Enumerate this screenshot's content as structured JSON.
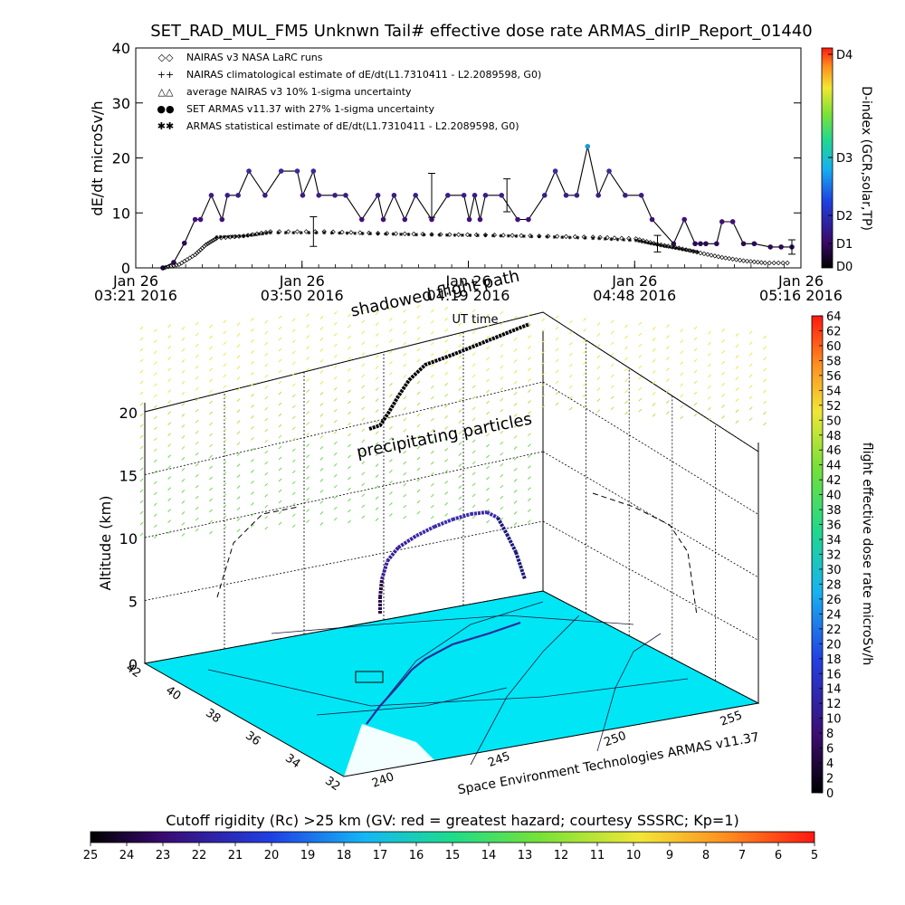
{
  "chart_data": [
    {
      "type": "line",
      "title": "SET_RAD_MUL_FM5 Unknwn Tail#  effective dose rate ARMAS_dirIP_Report_01440",
      "ylabel": "dE/dt microSv/h",
      "xlabel": "UT time",
      "ylim": [
        0,
        40
      ],
      "yticks": [
        0,
        10,
        20,
        30,
        40
      ],
      "xticks": [
        {
          "line1": "Jan 26",
          "line2": "03:21 2016"
        },
        {
          "line1": "Jan 26",
          "line2": "03:50 2016"
        },
        {
          "line1": "Jan 26",
          "line2": "04:19 2016"
        },
        {
          "line1": "Jan 26",
          "line2": "04:48 2016"
        },
        {
          "line1": "Jan 26",
          "line2": "05:16 2016"
        }
      ],
      "legend": [
        "NAIRAS v3 NASA LaRC runs",
        "NAIRAS climatological estimate of dE/dt(L1.7310411 - L2.2089598, G0)",
        "average NAIRAS v3 10% 1-sigma uncertainty",
        "SET ARMAS v11.37 with 27% 1-sigma uncertainty",
        "ARMAS statistical estimate of dE/dt(L1.7310411 - L2.2089598, G0)"
      ],
      "legend_symbols": [
        "◇",
        "+",
        "△",
        "●",
        "✱"
      ],
      "right_axis": {
        "label": "D-index (GCR,solar,TP)",
        "ticks": [
          "D4",
          "D3",
          "D2",
          "D1",
          "D0"
        ]
      },
      "series": [
        {
          "name": "SET ARMAS v11.37 with 27% 1-sigma uncertainty",
          "x_min": [
            0,
            2,
            4,
            6,
            7,
            9,
            11,
            12,
            14,
            16,
            19,
            22,
            25,
            26,
            28,
            29,
            32,
            34,
            37,
            40,
            41,
            43,
            45,
            47,
            50,
            53,
            56,
            57,
            58,
            59,
            60,
            63,
            66,
            68,
            71,
            73,
            75,
            77,
            79,
            81,
            83,
            86,
            89,
            91,
            95,
            97,
            99,
            100,
            101,
            103,
            104,
            106,
            108,
            110,
            113,
            115,
            117
          ],
          "y": [
            0,
            1,
            4.5,
            8.8,
            8.8,
            13.2,
            8.8,
            13.2,
            13.2,
            17.6,
            13.2,
            17.6,
            17.6,
            13.2,
            17.6,
            13.2,
            13.2,
            13.2,
            8.8,
            13.2,
            8.8,
            13.2,
            8.8,
            13.2,
            8.8,
            13.2,
            13.2,
            8.8,
            13.2,
            8.8,
            13.2,
            13.2,
            8.8,
            8.8,
            13.2,
            17.6,
            13.2,
            13.2,
            22.1,
            13.2,
            17.6,
            13.2,
            13.2,
            8.8,
            4.4,
            8.8,
            4.4,
            4.4,
            4.4,
            4.4,
            8.4,
            8.4,
            4.4,
            4.4,
            3.8,
            3.8,
            3.8
          ]
        },
        {
          "name": "NAIRAS v3 NASA LaRC runs",
          "x_min": [
            0,
            3,
            6,
            8,
            10,
            15,
            20,
            30,
            40,
            50,
            60,
            70,
            80,
            88,
            92,
            96,
            100,
            104,
            108,
            112,
            117
          ],
          "y": [
            0,
            0.6,
            2.4,
            4.2,
            5.4,
            5.8,
            6.6,
            6.6,
            6.3,
            6.1,
            6.0,
            5.8,
            5.6,
            5.3,
            4.3,
            3.6,
            2.7,
            1.9,
            1.3,
            0.9,
            0.9
          ]
        },
        {
          "name": "ARMAS statistical estimate of dE/dt(L1.7310411 - L2.2089598, G0)",
          "x_min": [
            10,
            15,
            20,
            30,
            40,
            50,
            60,
            70,
            80,
            88,
            92,
            96,
            100
          ],
          "y": [
            5.6,
            5.8,
            6.4,
            6.4,
            6.2,
            6.0,
            5.9,
            5.7,
            5.4,
            5.0,
            4.2,
            3.5,
            2.8
          ]
        }
      ],
      "time_span_min": 117
    },
    {
      "type": "scatter",
      "title": "",
      "zlabel": "Altitude (km)",
      "zticks": [
        0,
        5,
        10,
        15,
        20
      ],
      "lat_ticks": [
        42,
        40,
        38,
        36,
        34,
        32
      ],
      "lon_ticks": [
        240,
        245,
        250,
        255
      ],
      "annotations": [
        "shadowed flight path",
        "precipitating particles",
        "Space Environment Technologies ARMAS v11.37"
      ],
      "xaxis_title": "UT time",
      "flight": [
        {
          "lon": 245,
          "lat": 37.0,
          "alt": 0.5
        },
        {
          "lon": 245.3,
          "lat": 37.2,
          "alt": 3.0
        },
        {
          "lon": 245.6,
          "lat": 37.4,
          "alt": 6.0
        },
        {
          "lon": 246.2,
          "lat": 37.6,
          "alt": 8.5
        },
        {
          "lon": 247.0,
          "lat": 37.9,
          "alt": 10.0
        },
        {
          "lon": 248.0,
          "lat": 38.2,
          "alt": 10.8
        },
        {
          "lon": 249.0,
          "lat": 38.5,
          "alt": 11.3
        },
        {
          "lon": 250.0,
          "lat": 38.8,
          "alt": 11.8
        },
        {
          "lon": 251.0,
          "lat": 39.1,
          "alt": 12.2
        },
        {
          "lon": 252.0,
          "lat": 39.3,
          "alt": 12.0
        },
        {
          "lon": 252.6,
          "lat": 39.4,
          "alt": 10.0
        },
        {
          "lon": 253.0,
          "lat": 39.5,
          "alt": 8.0
        }
      ],
      "dose_colorbar": {
        "label": "flight effective dose rate microSv/h",
        "min": 0,
        "max": 64,
        "step": 2
      },
      "rigidity_colorbar": {
        "label": "Cutoff rigidity (Rc) >25 km (GV: red = greatest hazard; courtesy SSSRC; Kp=1)",
        "ticks": [
          25,
          24,
          23,
          22,
          21,
          20,
          19,
          18,
          17,
          16,
          15,
          14,
          13,
          12,
          11,
          10,
          9,
          8,
          7,
          6,
          5
        ]
      },
      "map_color": "#00e6f5"
    }
  ]
}
